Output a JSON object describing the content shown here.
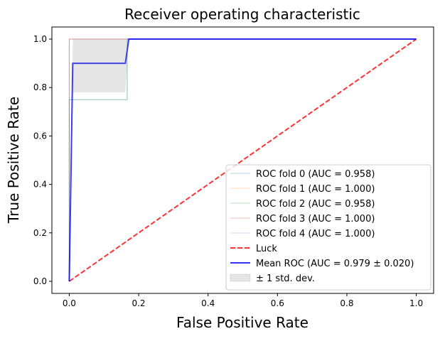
{
  "chart_data": {
    "type": "line",
    "title": "Receiver operating characteristic",
    "xlabel": "False Positive Rate",
    "ylabel": "True Positive Rate",
    "xlim": [
      -0.05,
      1.05
    ],
    "ylim": [
      -0.05,
      1.05
    ],
    "xticks": [
      {
        "value": 0,
        "label": "0.0"
      },
      {
        "value": 0.2,
        "label": "0.2"
      },
      {
        "value": 0.4,
        "label": "0.4"
      },
      {
        "value": 0.6,
        "label": "0.6"
      },
      {
        "value": 0.8,
        "label": "0.8"
      },
      {
        "value": 1,
        "label": "1.0"
      }
    ],
    "yticks": [
      {
        "value": 0,
        "label": "0.0"
      },
      {
        "value": 0.2,
        "label": "0.2"
      },
      {
        "value": 0.4,
        "label": "0.4"
      },
      {
        "value": 0.6,
        "label": "0.6"
      },
      {
        "value": 0.8,
        "label": "0.8"
      },
      {
        "value": 1,
        "label": "1.0"
      }
    ],
    "legend": "lower right",
    "series": [
      {
        "name": "ROC fold 0 (AUC = 0.958)",
        "color": "#1f77b4",
        "alpha": 0.3,
        "linewidth": 1,
        "x": [
          0,
          0,
          0.167,
          0.167,
          1
        ],
        "values": [
          0,
          0.75,
          0.75,
          1,
          1
        ]
      },
      {
        "name": "ROC fold 1 (AUC = 1.000)",
        "color": "#ff7f0e",
        "alpha": 0.3,
        "linewidth": 1,
        "x": [
          0,
          0,
          1
        ],
        "values": [
          0,
          1,
          1
        ]
      },
      {
        "name": "ROC fold 2 (AUC = 0.958)",
        "color": "#2ca02c",
        "alpha": 0.3,
        "linewidth": 1,
        "x": [
          0,
          0,
          0.167,
          0.167,
          1
        ],
        "values": [
          0,
          0.75,
          0.75,
          1,
          1
        ]
      },
      {
        "name": "ROC fold 3 (AUC = 1.000)",
        "color": "#d62728",
        "alpha": 0.3,
        "linewidth": 1,
        "x": [
          0,
          0,
          1
        ],
        "values": [
          0,
          1,
          1
        ]
      },
      {
        "name": "ROC fold 4 (AUC = 1.000)",
        "color": "#9467bd",
        "alpha": 0.3,
        "linewidth": 1,
        "x": [
          0,
          0,
          1
        ],
        "values": [
          0,
          1,
          1
        ]
      },
      {
        "name": "Luck",
        "color": "#ff0000",
        "alpha": 0.8,
        "linewidth": 2,
        "dashed": true,
        "x": [
          0,
          1
        ],
        "values": [
          0,
          1
        ]
      },
      {
        "name": "Mean ROC (AUC = 0.979 ± 0.020)",
        "color": "#0000ff",
        "alpha": 0.8,
        "linewidth": 2,
        "x": [
          0,
          0.0101,
          0.1616,
          0.1717,
          1
        ],
        "values": [
          0,
          0.9,
          0.9,
          1,
          1
        ]
      },
      {
        "name": "± 1 std. dev.",
        "kind": "band",
        "color": "#808080",
        "alpha": 0.2,
        "x": [
          0,
          0.0101,
          0.1616,
          0.1717,
          1
        ],
        "lower": [
          0,
          0.78,
          0.78,
          1,
          1
        ],
        "upper": [
          0,
          1,
          1,
          1,
          1
        ]
      }
    ]
  }
}
